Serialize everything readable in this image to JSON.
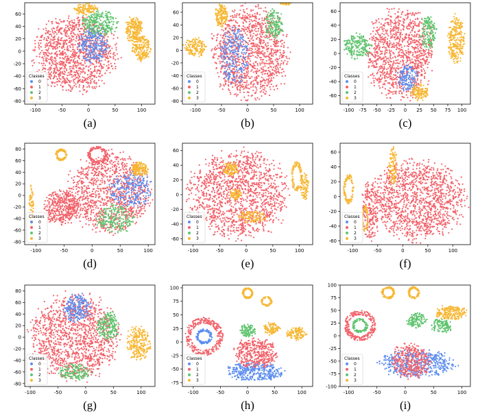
{
  "colors": {
    "0": "#5b8def",
    "1": "#f2626a",
    "2": "#5fc46e",
    "3": "#f7b733"
  },
  "legend_title": "Classes",
  "legend_labels": [
    "0",
    "1",
    "2",
    "3"
  ],
  "chart_data": [
    {
      "type": "scatter",
      "caption": "(a)",
      "xlim": [
        -120,
        125
      ],
      "ylim": [
        -85,
        78
      ],
      "xticks": [
        -100,
        -50,
        0,
        50,
        100
      ],
      "yticks": [
        -80,
        -60,
        -40,
        -20,
        0,
        20,
        40,
        60
      ],
      "legend": "lower-left",
      "clusters": [
        {
          "cls": 1,
          "cx": -25,
          "cy": -5,
          "rx": 80,
          "ry": 62,
          "n": 1200,
          "shape": "blob"
        },
        {
          "cls": 0,
          "cx": 10,
          "cy": 10,
          "rx": 28,
          "ry": 30,
          "n": 250,
          "shape": "blob"
        },
        {
          "cls": 2,
          "cx": 20,
          "cy": 45,
          "rx": 35,
          "ry": 22,
          "n": 250,
          "shape": "blob"
        },
        {
          "cls": 3,
          "cx": -5,
          "cy": 68,
          "rx": 22,
          "ry": 10,
          "n": 120,
          "shape": "blob"
        },
        {
          "cls": 3,
          "cx": 85,
          "cy": 35,
          "rx": 16,
          "ry": 22,
          "n": 200,
          "shape": "blob"
        },
        {
          "cls": 3,
          "cx": 100,
          "cy": 5,
          "rx": 18,
          "ry": 20,
          "n": 200,
          "shape": "blob"
        }
      ]
    },
    {
      "type": "scatter",
      "caption": "(b)",
      "xlim": [
        -125,
        125
      ],
      "ylim": [
        -85,
        75
      ],
      "xticks": [
        -100,
        -50,
        0,
        50,
        100
      ],
      "yticks": [
        -80,
        -60,
        -40,
        -20,
        0,
        20,
        40,
        60
      ],
      "legend": "lower-left",
      "clusters": [
        {
          "cls": 1,
          "cx": 5,
          "cy": -5,
          "rx": 75,
          "ry": 75,
          "n": 1200,
          "shape": "blob"
        },
        {
          "cls": 0,
          "cx": -25,
          "cy": -10,
          "rx": 28,
          "ry": 45,
          "n": 250,
          "shape": "blob"
        },
        {
          "cls": 2,
          "cx": 50,
          "cy": 40,
          "rx": 18,
          "ry": 25,
          "n": 150,
          "shape": "blob"
        },
        {
          "cls": 3,
          "cx": -50,
          "cy": 55,
          "rx": 12,
          "ry": 18,
          "n": 150,
          "shape": "blob"
        },
        {
          "cls": 3,
          "cx": -100,
          "cy": 5,
          "rx": 22,
          "ry": 15,
          "n": 150,
          "shape": "blob"
        },
        {
          "cls": 3,
          "cx": 75,
          "cy": 75,
          "rx": 12,
          "ry": 4,
          "n": 40,
          "shape": "blob"
        }
      ]
    },
    {
      "type": "scatter",
      "caption": "(c)",
      "xlim": [
        -115,
        115
      ],
      "ylim": [
        -72,
        72
      ],
      "xticks": [
        -100,
        -75,
        -50,
        -25,
        0,
        25,
        50,
        75,
        100
      ],
      "yticks": [
        -60,
        -40,
        -20,
        0,
        20,
        40,
        60
      ],
      "legend": "lower-left",
      "clusters": [
        {
          "cls": 1,
          "cx": -10,
          "cy": 0,
          "rx": 60,
          "ry": 65,
          "n": 1100,
          "shape": "blob"
        },
        {
          "cls": 2,
          "cx": -85,
          "cy": 10,
          "rx": 25,
          "ry": 18,
          "n": 200,
          "shape": "blob"
        },
        {
          "cls": 2,
          "cx": 40,
          "cy": 30,
          "rx": 15,
          "ry": 25,
          "n": 150,
          "shape": "blob"
        },
        {
          "cls": 0,
          "cx": 5,
          "cy": -35,
          "rx": 18,
          "ry": 20,
          "n": 150,
          "shape": "blob"
        },
        {
          "cls": 3,
          "cx": 25,
          "cy": -55,
          "rx": 15,
          "ry": 12,
          "n": 120,
          "shape": "blob"
        },
        {
          "cls": 3,
          "cx": 90,
          "cy": 20,
          "rx": 15,
          "ry": 35,
          "n": 250,
          "shape": "blob"
        }
      ]
    },
    {
      "type": "scatter",
      "caption": "(d)",
      "xlim": [
        -120,
        112
      ],
      "ylim": [
        -85,
        90
      ],
      "xticks": [
        -100,
        -50,
        0,
        50,
        100
      ],
      "yticks": [
        -80,
        -60,
        -40,
        -20,
        0,
        20,
        40,
        60,
        80
      ],
      "legend": "lower-left",
      "clusters": [
        {
          "cls": 1,
          "cx": 30,
          "cy": 5,
          "rx": 75,
          "ry": 70,
          "n": 1100,
          "shape": "blob"
        },
        {
          "cls": 0,
          "cx": 70,
          "cy": 10,
          "rx": 40,
          "ry": 30,
          "n": 250,
          "shape": "blob"
        },
        {
          "cls": 2,
          "cx": 40,
          "cy": -40,
          "rx": 35,
          "ry": 25,
          "n": 200,
          "shape": "blob"
        },
        {
          "cls": 1,
          "cx": -55,
          "cy": -20,
          "rx": 32,
          "ry": 30,
          "n": 400,
          "shape": "blob"
        },
        {
          "cls": 1,
          "cx": 10,
          "cy": 70,
          "rx": 18,
          "ry": 15,
          "n": 150,
          "shape": "ring"
        },
        {
          "cls": 3,
          "cx": -55,
          "cy": 70,
          "rx": 10,
          "ry": 10,
          "n": 120,
          "shape": "ring"
        },
        {
          "cls": 3,
          "cx": 85,
          "cy": 45,
          "rx": 15,
          "ry": 12,
          "n": 150,
          "shape": "blob"
        },
        {
          "cls": 3,
          "cx": -108,
          "cy": -20,
          "rx": 4,
          "ry": 40,
          "n": 80,
          "shape": "blob"
        }
      ]
    },
    {
      "type": "scatter",
      "caption": "(e)",
      "xlim": [
        -120,
        125
      ],
      "ylim": [
        -68,
        70
      ],
      "xticks": [
        -100,
        -50,
        0,
        50,
        100
      ],
      "yticks": [
        -60,
        -40,
        -20,
        0,
        20,
        40,
        60
      ],
      "legend": "lower-left",
      "clusters": [
        {
          "cls": 1,
          "cx": -15,
          "cy": 0,
          "rx": 95,
          "ry": 60,
          "n": 1400,
          "shape": "blob"
        },
        {
          "cls": 3,
          "cx": -30,
          "cy": 35,
          "rx": 15,
          "ry": 10,
          "n": 100,
          "shape": "blob"
        },
        {
          "cls": 3,
          "cx": -20,
          "cy": 0,
          "rx": 10,
          "ry": 8,
          "n": 80,
          "shape": "blob"
        },
        {
          "cls": 3,
          "cx": 10,
          "cy": -30,
          "rx": 28,
          "ry": 8,
          "n": 100,
          "shape": "blob"
        },
        {
          "cls": 3,
          "cx": 95,
          "cy": 25,
          "rx": 10,
          "ry": 20,
          "n": 100,
          "shape": "ring"
        },
        {
          "cls": 3,
          "cx": 110,
          "cy": 10,
          "rx": 8,
          "ry": 20,
          "n": 80,
          "shape": "blob"
        }
      ]
    },
    {
      "type": "scatter",
      "caption": "(f)",
      "xlim": [
        -125,
        135
      ],
      "ylim": [
        -65,
        72
      ],
      "xticks": [
        -100,
        -50,
        0,
        50,
        100
      ],
      "yticks": [
        -60,
        -40,
        -20,
        0,
        20,
        40,
        60
      ],
      "legend": "lower-left",
      "clusters": [
        {
          "cls": 1,
          "cx": 30,
          "cy": -5,
          "rx": 95,
          "ry": 55,
          "n": 1300,
          "shape": "blob"
        },
        {
          "cls": 1,
          "cx": -65,
          "cy": -20,
          "rx": 18,
          "ry": 40,
          "n": 200,
          "shape": "blob"
        },
        {
          "cls": 3,
          "cx": -20,
          "cy": 40,
          "rx": 8,
          "ry": 28,
          "n": 100,
          "shape": "blob"
        },
        {
          "cls": 3,
          "cx": -108,
          "cy": 10,
          "rx": 10,
          "ry": 20,
          "n": 100,
          "shape": "ring"
        },
        {
          "cls": 3,
          "cx": -75,
          "cy": -30,
          "rx": 6,
          "ry": 18,
          "n": 60,
          "shape": "ring"
        }
      ]
    },
    {
      "type": "scatter",
      "caption": "(g)",
      "xlim": [
        -110,
        125
      ],
      "ylim": [
        -85,
        90
      ],
      "xticks": [
        -100,
        -50,
        0,
        50,
        100
      ],
      "yticks": [
        -80,
        -60,
        -40,
        -20,
        0,
        20,
        40,
        60,
        80
      ],
      "legend": "lower-left",
      "clusters": [
        {
          "cls": 1,
          "cx": -20,
          "cy": 0,
          "rx": 80,
          "ry": 75,
          "n": 1300,
          "shape": "blob"
        },
        {
          "cls": 0,
          "cx": -15,
          "cy": 50,
          "rx": 25,
          "ry": 25,
          "n": 200,
          "shape": "blob"
        },
        {
          "cls": 2,
          "cx": 40,
          "cy": 20,
          "rx": 20,
          "ry": 25,
          "n": 200,
          "shape": "blob"
        },
        {
          "cls": 2,
          "cx": -20,
          "cy": -60,
          "rx": 30,
          "ry": 15,
          "n": 150,
          "shape": "blob"
        },
        {
          "cls": 3,
          "cx": 95,
          "cy": -10,
          "rx": 22,
          "ry": 30,
          "n": 250,
          "shape": "blob"
        }
      ]
    },
    {
      "type": "scatter",
      "caption": "(h)",
      "xlim": [
        -120,
        120
      ],
      "ylim": [
        -82,
        105
      ],
      "xticks": [
        -100,
        -50,
        0,
        50,
        100
      ],
      "yticks": [
        -75,
        -50,
        -25,
        0,
        25,
        50,
        75,
        100
      ],
      "legend": "lower-left",
      "clusters": [
        {
          "cls": 0,
          "cx": 15,
          "cy": -55,
          "rx": 55,
          "ry": 18,
          "n": 350,
          "shape": "blob"
        },
        {
          "cls": 1,
          "cx": 15,
          "cy": -20,
          "rx": 40,
          "ry": 28,
          "n": 400,
          "shape": "blob"
        },
        {
          "cls": 2,
          "cx": 0,
          "cy": 20,
          "rx": 15,
          "ry": 12,
          "n": 100,
          "shape": "blob"
        },
        {
          "cls": 3,
          "cx": 45,
          "cy": 25,
          "rx": 15,
          "ry": 12,
          "n": 100,
          "shape": "blob"
        },
        {
          "cls": 3,
          "cx": 90,
          "cy": 15,
          "rx": 18,
          "ry": 12,
          "n": 120,
          "shape": "blob"
        },
        {
          "cls": 1,
          "cx": -80,
          "cy": 10,
          "rx": 35,
          "ry": 35,
          "n": 300,
          "shape": "ring"
        },
        {
          "cls": 0,
          "cx": -80,
          "cy": 10,
          "rx": 15,
          "ry": 14,
          "n": 120,
          "shape": "ring"
        },
        {
          "cls": 3,
          "cx": 0,
          "cy": 90,
          "rx": 10,
          "ry": 10,
          "n": 100,
          "shape": "ring"
        },
        {
          "cls": 3,
          "cx": 35,
          "cy": 75,
          "rx": 10,
          "ry": 9,
          "n": 90,
          "shape": "ring"
        }
      ]
    },
    {
      "type": "scatter",
      "caption": "(i)",
      "xlim": [
        -115,
        115
      ],
      "ylim": [
        -100,
        100
      ],
      "xticks": [
        -100,
        -50,
        0,
        50,
        100
      ],
      "yticks": [
        -100,
        -75,
        -50,
        -25,
        0,
        25,
        50,
        75,
        100
      ],
      "legend": "lower-left",
      "clusters": [
        {
          "cls": 0,
          "cx": 20,
          "cy": -55,
          "rx": 70,
          "ry": 28,
          "n": 500,
          "shape": "blob"
        },
        {
          "cls": 1,
          "cx": 10,
          "cy": -50,
          "rx": 35,
          "ry": 35,
          "n": 350,
          "shape": "blob"
        },
        {
          "cls": 2,
          "cx": 20,
          "cy": 30,
          "rx": 18,
          "ry": 15,
          "n": 120,
          "shape": "blob"
        },
        {
          "cls": 2,
          "cx": 65,
          "cy": 20,
          "rx": 18,
          "ry": 15,
          "n": 120,
          "shape": "blob"
        },
        {
          "cls": 3,
          "cx": 80,
          "cy": 45,
          "rx": 28,
          "ry": 15,
          "n": 200,
          "shape": "blob"
        },
        {
          "cls": 1,
          "cx": -80,
          "cy": 20,
          "rx": 28,
          "ry": 30,
          "n": 250,
          "shape": "ring"
        },
        {
          "cls": 2,
          "cx": -80,
          "cy": 20,
          "rx": 14,
          "ry": 14,
          "n": 100,
          "shape": "ring"
        },
        {
          "cls": 3,
          "cx": -30,
          "cy": 85,
          "rx": 12,
          "ry": 12,
          "n": 100,
          "shape": "ring"
        },
        {
          "cls": 3,
          "cx": 15,
          "cy": 85,
          "rx": 10,
          "ry": 12,
          "n": 100,
          "shape": "ring"
        }
      ]
    }
  ]
}
